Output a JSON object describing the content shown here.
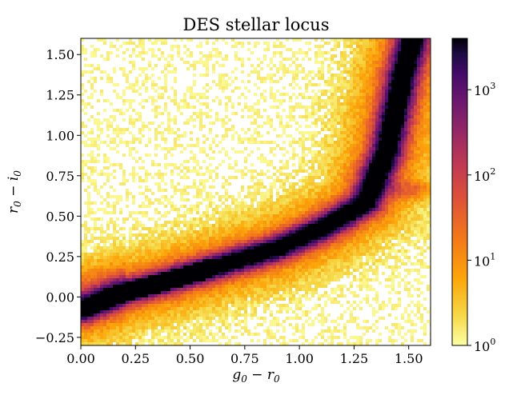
{
  "chart_data": {
    "type": "heatmap",
    "title": "DES stellar locus",
    "xlabel": "g_0 - r_0",
    "ylabel": "r_0 - i_0",
    "xlim": [
      0.0,
      1.6
    ],
    "ylim": [
      -0.3,
      1.6
    ],
    "x_ticks": [
      "0.00",
      "0.25",
      "0.50",
      "0.75",
      "1.00",
      "1.25",
      "1.50"
    ],
    "x_tick_values": [
      0.0,
      0.25,
      0.5,
      0.75,
      1.0,
      1.25,
      1.5
    ],
    "y_ticks": [
      "−0.25",
      "0.00",
      "0.25",
      "0.50",
      "0.75",
      "1.00",
      "1.25",
      "1.50"
    ],
    "y_tick_values": [
      -0.25,
      0.0,
      0.25,
      0.5,
      0.75,
      1.0,
      1.25,
      1.5
    ],
    "colorbar": {
      "scale": "log",
      "colormap": "inferno_r",
      "range": [
        1,
        4000
      ],
      "ticks": [
        {
          "value": 1,
          "label": "10",
          "exp": "0"
        },
        {
          "value": 10,
          "label": "10",
          "exp": "1"
        },
        {
          "value": 100,
          "label": "10",
          "exp": "2"
        },
        {
          "value": 1000,
          "label": "10",
          "exp": "3"
        }
      ]
    },
    "locus_ridge": [
      {
        "x": 0.0,
        "y": -0.08
      },
      {
        "x": 0.2,
        "y": 0.03
      },
      {
        "x": 0.35,
        "y": 0.08
      },
      {
        "x": 0.6,
        "y": 0.18
      },
      {
        "x": 0.9,
        "y": 0.3
      },
      {
        "x": 1.1,
        "y": 0.42
      },
      {
        "x": 1.3,
        "y": 0.58
      },
      {
        "x": 1.4,
        "y": 0.9
      },
      {
        "x": 1.47,
        "y": 1.35
      },
      {
        "x": 1.52,
        "y": 1.6
      }
    ],
    "peak_region": {
      "x": [
        0.25,
        0.55
      ],
      "y": [
        0.03,
        0.12
      ]
    },
    "grid": false
  }
}
